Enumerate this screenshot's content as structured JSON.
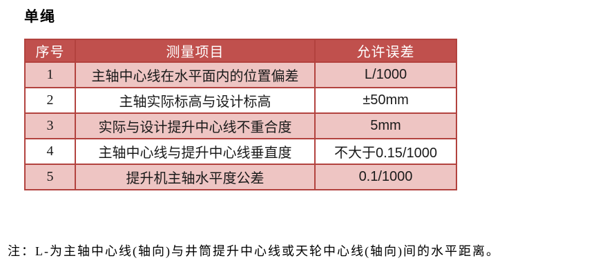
{
  "page": {
    "title": "单绳"
  },
  "table": {
    "headers": [
      "序号",
      "测量项目",
      "允许误差"
    ],
    "rows": [
      {
        "no": "1",
        "item": "主轴中心线在水平面内的位置偏差",
        "tolerance": "L/1000"
      },
      {
        "no": "2",
        "item": "主轴实际标高与设计标高",
        "tolerance": "±50mm"
      },
      {
        "no": "3",
        "item": "实际与设计提升中心线不重合度",
        "tolerance": "5mm"
      },
      {
        "no": "4",
        "item": "主轴中心线与提升中心线垂直度",
        "tolerance": "不大于0.15/1000"
      },
      {
        "no": "5",
        "item": "提升机主轴水平度公差",
        "tolerance": "0.1/1000"
      }
    ]
  },
  "note": "注：L-为主轴中心线(轴向)与井筒提升中心线或天轮中心线(轴向)间的水平距离。",
  "colors": {
    "header_bg": "#c0504d",
    "band_bg": "#eec5c3",
    "row_bg": "#ffffff",
    "border": "#b2423e",
    "header_text": "#ffffff",
    "body_text": "#1a1a1a"
  }
}
